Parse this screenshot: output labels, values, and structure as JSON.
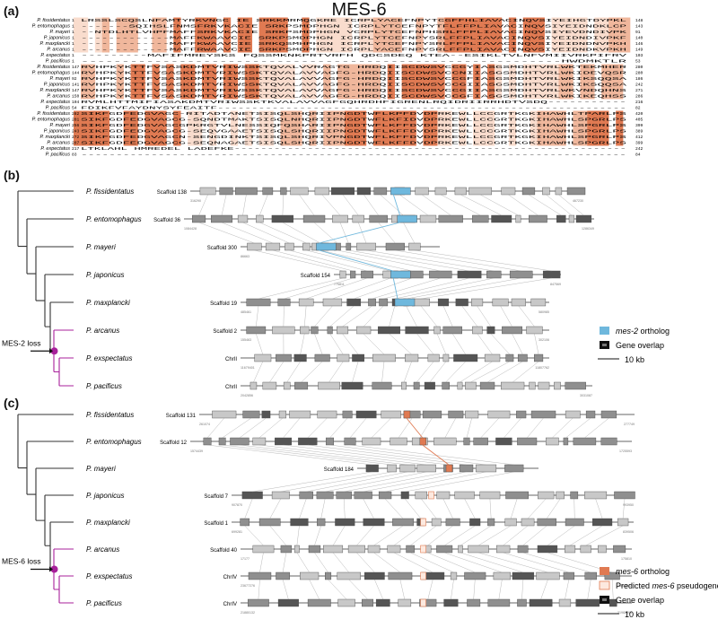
{
  "figure": {
    "title": "MES-6",
    "panel_a_label": "(a)",
    "panel_b_label": "(b)",
    "panel_c_label": "(c)"
  },
  "panel_a": {
    "species": [
      "P. fissidentatus",
      "P. entomophagus",
      "P. mayeri",
      "P. japonicus",
      "P. maxplancki",
      "P. arcanus",
      "P. expectatus",
      "P. pacificus"
    ],
    "blocks": [
      {
        "starts": [
          "1",
          "1",
          "1",
          "1",
          "1",
          "1",
          "1",
          "1"
        ],
        "ends": [
          "148",
          "143",
          "91",
          "140",
          "146",
          "149",
          "103",
          "53"
        ],
        "rows": [
          "LRSSLSCQSLNFAMTYRKVNGC IE SRKKMRMQGKRE ICRPLYACEFNPYTCGFFHLIAVACINQVSIYEIHGTDYPKL",
          "-------SQIHSLFNMSFRKVKACIE SRKPSMDPHGN ICRPLYTCEFNPYTFLFFPLIAVACINQVSIYEIDNDKLCP",
          "--NTDLHTLVHPFMAFFSRKVKACIE SRKPSMDPHGN VCRPLYTCEFNPHSRLFFPLIAVACINQVSIYEVDNDIVPK",
          "-------------MAFFKWAAVCIE SRKPSMDPHGN ICRPLYTCEFNPYSRLFFPLIAVACINQVSIYEIDNDIVPKF",
          "-------------MAFFKWAAVCIE SRKQSMHPHGN ICRPLYTCEFNPYSRLFFPLIAVACINQVSIYEIDNDNVPKH",
          "-------------MAFFRWAAVCIE SRKPSMDPHGN ICRPLYACEFNPYSRLFFPLIAVACINQVSIYEIDNDKVPKH",
          "---------MAFIFMREYSKS FQSSMKNKPRTVRFH QDCSDEQ KTEA--ESIKLTVLNFVMIIVRKPIFRV",
          "-----------------------------------------------------------HWDMKTLR"
        ]
      },
      {
        "starts": [
          "147",
          "144",
          "92",
          "141",
          "147",
          "150",
          "104",
          "54"
        ],
        "ends": [
          "280",
          "280",
          "186",
          "242",
          "271",
          "286",
          "216",
          "82"
        ],
        "rows": [
          "RVHPKYKTTFVSASKDMTVRIWSSKTQVALVVRAGTG HRDQIISCDWSVCCGYIASGSMDHTVRLWKTEKMHER",
          "RVHPKYKTTFVSASKDMTVRIWSSKTQVALAVVAGFG-HRDQIISCDWSVCCNIIASGSMDHTVRLWKIDEVQSR",
          "RVHPKYKTTFVSASKDMTVRIWSSKTQVALAVVAGFG-HRDQIISCDWSVCCGFIASGSMDHTVRLWKIKSQQSA",
          "RVHPKYKTTFVSASKDMTVRIWSSKTQVALAVVAGFG-HRDQIISCDWSVCCGIIASGSMDHTVRLWKIKSQQSA",
          "RVHPKYKTTFVSASKDMTVRIWSSKTQVALAVVAGFG-HRDQIISCDWSVCCGIIASGSMDHTVRLWKVNDQHNS",
          "RVHPKYKTTFVSASKDMTVRIWSSKTQVALAVVAGFG-HRDQIISCDWSVCCGFIASGSMDHTVRLWKIKEQHSS",
          "RVMLHTTMIFIASAKDMTVRIWSSKTKVALAVVAGFGQHRDHFIGRENLRQIDRIIRRHDTVSDQ-----------",
          "FDIKFVFAYDNYSYFEAITF------------------------------------------------------------"
        ]
      },
      {
        "starts": [
          "282",
          "281",
          "256",
          "243",
          "272",
          "287",
          "217",
          "83"
        ],
        "ends": [
          "420",
          "405",
          "399",
          "389",
          "412",
          "399",
          "242",
          "84"
        ],
        "rows": [
          "SIKFGDFEDGVAGC-RITADTANETSISQLSHQRIIPNGDTWFLKPFDVDPRKEWLLCCGRTKGKIHAWHLTPARLPS",
          "SIKFGDFEDGVAGCG-SQNDTMAKTSISQLNHQRIIPNGDTWFLKFIDVDPRKEWLLCCGRTKGKIHAWHLSPGRLPS",
          "SIKFGDFEDGVAGCGPKRGTVLNESSIQFQSHARIIPNGDTWFLKFFDVDPRKEWLLCCGRTKGKIHAWHLSPGRLPS",
          "SIKFGDFEDGVAGCG-SEQVGAAETSISQLSHQRIIPNGDTWFLKFFDVDPRKEWLLCCGRTKGKIHAWHLSPGRLPS",
          "SIKFGDFEDGVAGCN-SENGDINKTSISQLSHQRIVPNGDTWFLKFFDVDPRKEWLLCCGRTKGKIHAWHLSPGRLPS",
          "SIKFGDFEDGVAGCG-SEQNAGAETSISQLSHQRIIPNGDTWFLKFFDVDPRKEWLLCCGRTKGKIHAWHLSPGRLPS",
          "LTKLAHL HMREDEL LADEFKE-----------------------------------------------------------",
          "------------------------------------------------------------------------------"
        ]
      }
    ]
  },
  "panel_b": {
    "species": [
      "P. fissidentatus",
      "P. entomophagus",
      "P. mayeri",
      "P. japonicus",
      "P. maxplancki",
      "P. arcanus",
      "P. exspectatus",
      "P. pacificus"
    ],
    "scaffolds": [
      "Scaffold 138",
      "Scaffold 36",
      "Scaffold 300",
      "Scaffold 154",
      "Scaffold 19",
      "Scaffold 2",
      "ChrII",
      "ChrII"
    ],
    "coord_left": [
      "316290",
      "1084428",
      "86663",
      "775811",
      "485461",
      "155463",
      "11679401",
      "2042856"
    ],
    "coord_right": [
      "467230",
      "1286349",
      "",
      "847569",
      "580985",
      "302106",
      "11807762",
      "3031087"
    ],
    "loss_label": "MES-2 loss",
    "legend": {
      "ortholog_gene": "mes-2",
      "ortholog_suffix": "ortholog",
      "overlap": "Gene overlap",
      "scale": "10 kb"
    }
  },
  "panel_c": {
    "species": [
      "P. fissidentatus",
      "P. entomophagus",
      "P. mayeri",
      "P. japonicus",
      "P. maxplancki",
      "P. arcanus",
      "P. exspectatus",
      "P. pacificus"
    ],
    "scaffolds": [
      "Scaffold 131",
      "Scaffold 12",
      "Scaffold 184",
      "Scaffold 7",
      "Scaffold 1",
      "Scaffold 40",
      "ChrIV",
      "ChrIV"
    ],
    "coord_left": [
      "261074",
      "1574439",
      "",
      "907870",
      "699281",
      "17177",
      "23677276",
      "21880132"
    ],
    "coord_right": [
      "277749",
      "1725593",
      "",
      "993950",
      "839506",
      "175810",
      "23801612",
      "21982999"
    ],
    "loss_label": "MES-6 loss",
    "legend": {
      "ortholog_gene": "mes-6",
      "ortholog_suffix": "ortholog",
      "pseudo_prefix": "Predicted",
      "pseudo_gene": "mes-6",
      "pseudo_suffix": "pseudogene",
      "overlap": "Gene overlap",
      "scale": "10 kb"
    }
  },
  "colors": {
    "align_high": "#e07a52",
    "align_mid": "#f0b79c",
    "align_low": "#f9dccd",
    "mes2": "#6fb8dd",
    "mes6": "#e07a52",
    "magenta": "#a8209b",
    "gene_dark": "#555555",
    "gene_mid": "#8f8f8f",
    "gene_light": "#c8c8c8"
  }
}
